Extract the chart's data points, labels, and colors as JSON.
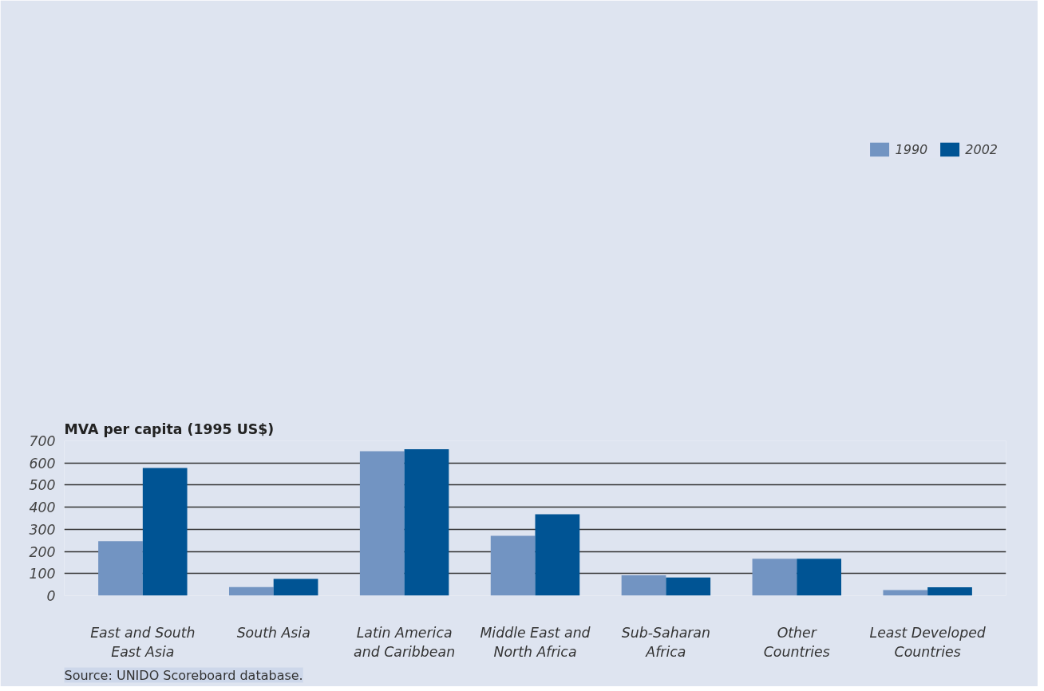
{
  "chart_data": {
    "type": "bar",
    "ylabel": "MVA per capita (1995 US$)",
    "categories": [
      "East and South\nEast Asia",
      "South Asia",
      "Latin America\nand Caribbean",
      "Middle East and\nNorth Africa",
      "Sub-Saharan\nAfrica",
      "Other\nCountries",
      "Least Developed\nCountries"
    ],
    "series": [
      {
        "name": "1990",
        "color": "#7294c2",
        "values": [
          246,
          39,
          653,
          271,
          92,
          167,
          25
        ]
      },
      {
        "name": "2002",
        "color": "#005494",
        "values": [
          577,
          76,
          662,
          368,
          82,
          167,
          38
        ]
      }
    ],
    "ylim": [
      0,
      700
    ],
    "yticks": [
      0,
      100,
      200,
      300,
      400,
      500,
      600,
      700
    ],
    "grid": "y",
    "legend": "top right",
    "annotations": [
      "Source: UNIDO Scoreboard database."
    ]
  }
}
